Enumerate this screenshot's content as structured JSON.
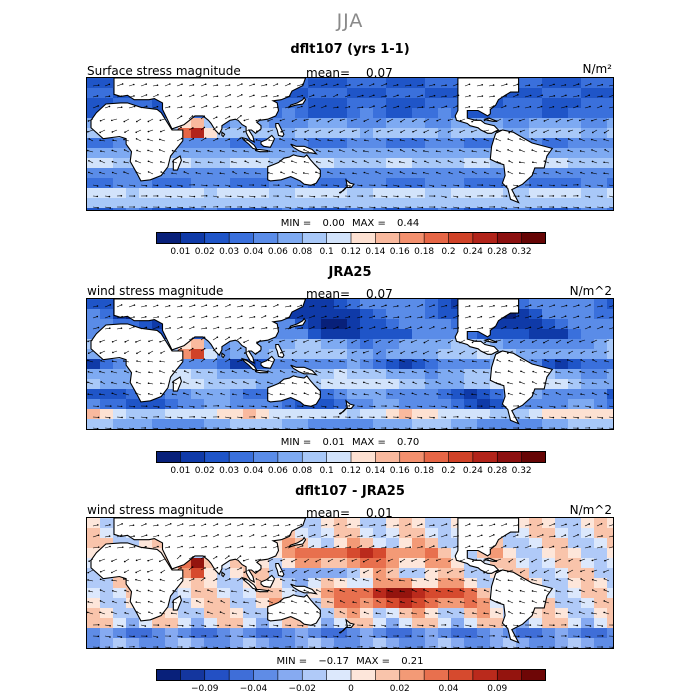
{
  "title": "JJA",
  "colors": {
    "ocean_low": "#1d4fc4",
    "ocean_mid": "#4a86e6",
    "ocean_light": "#a9cdfa",
    "warm": "#f07a4c",
    "hot": "#b82012",
    "land": "#ffffff"
  },
  "panels": [
    {
      "name": "dflt107",
      "title": "dflt107 (yrs 1-1)",
      "variable": "Surface stress magnitude",
      "mean_label": "mean=",
      "mean": "0.07",
      "units": "N/m²",
      "min_label": "MIN =",
      "min": "0.00",
      "max_label": "MAX =",
      "max": "0.44"
    },
    {
      "name": "JRA25",
      "title": "JRA25",
      "variable": "wind stress magnitude",
      "mean_label": "mean=",
      "mean": "0.07",
      "units": "N/m^2",
      "min_label": "MIN =",
      "min": "0.01",
      "max_label": "MAX =",
      "max": "0.70"
    },
    {
      "name": "diff",
      "title": "dflt107 - JRA25",
      "variable": "wind stress magnitude",
      "mean_label": "mean=",
      "mean": "0.01",
      "units": "N/m^2",
      "min_label": "MIN =",
      "min": "−0.17",
      "max_label": "MAX =",
      "max": "0.21"
    }
  ],
  "chart_data": [
    {
      "type": "heatmap",
      "title": "dflt107 (yrs 1-1)",
      "subtitle": "Surface stress magnitude",
      "season": "JJA",
      "units": "N/m^2",
      "mean": 0.07,
      "min": 0.0,
      "max": 0.44,
      "colorbar": {
        "levels": [
          0.01,
          0.02,
          0.03,
          0.04,
          0.06,
          0.08,
          0.1,
          0.12,
          0.14,
          0.16,
          0.18,
          0.2,
          0.24,
          0.28,
          0.32
        ],
        "tick_labels": [
          "0.01",
          "0.02",
          "0.03",
          "0.04",
          "0.06",
          "0.08",
          "0.1",
          "0.12",
          "0.14",
          "0.16",
          "0.18",
          "0.2",
          "0.24",
          "0.28",
          "0.32"
        ],
        "colors": [
          "#08207a",
          "#0f3aa8",
          "#1f55c8",
          "#3a70dc",
          "#5a8ce8",
          "#7eaaf2",
          "#a8c8f8",
          "#d2e3fb",
          "#fde1d2",
          "#f9b99e",
          "#f3906e",
          "#e66646",
          "#d04228",
          "#b2241a",
          "#8c1010",
          "#660505"
        ]
      }
    },
    {
      "type": "heatmap",
      "title": "JRA25",
      "subtitle": "wind stress magnitude",
      "season": "JJA",
      "units": "N/m^2",
      "mean": 0.07,
      "min": 0.01,
      "max": 0.7,
      "colorbar": {
        "levels": [
          0.01,
          0.02,
          0.03,
          0.04,
          0.06,
          0.08,
          0.1,
          0.12,
          0.14,
          0.16,
          0.18,
          0.2,
          0.24,
          0.28,
          0.32
        ],
        "tick_labels": [
          "0.01",
          "0.02",
          "0.03",
          "0.04",
          "0.06",
          "0.08",
          "0.1",
          "0.12",
          "0.14",
          "0.16",
          "0.18",
          "0.2",
          "0.24",
          "0.28",
          "0.32"
        ],
        "colors": [
          "#08207a",
          "#0f3aa8",
          "#1f55c8",
          "#3a70dc",
          "#5a8ce8",
          "#7eaaf2",
          "#a8c8f8",
          "#d2e3fb",
          "#fde1d2",
          "#f9b99e",
          "#f3906e",
          "#e66646",
          "#d04228",
          "#b2241a",
          "#8c1010",
          "#660505"
        ]
      }
    },
    {
      "type": "heatmap",
      "title": "dflt107 - JRA25",
      "subtitle": "wind stress magnitude",
      "season": "JJA",
      "units": "N/m^2",
      "mean": 0.01,
      "min": -0.17,
      "max": 0.21,
      "colorbar": {
        "levels": [
          -0.09,
          -0.04,
          -0.02,
          0,
          0.02,
          0.04,
          0.09
        ],
        "tick_labels": [
          "−0.09",
          "−0.04",
          "−0.02",
          "0",
          "0.02",
          "0.04",
          "0.09"
        ],
        "colors": [
          "#08207a",
          "#14369e",
          "#2350c4",
          "#3f6ed8",
          "#5f8ce6",
          "#86aaf1",
          "#b0caf8",
          "#dce8fc",
          "#fde6da",
          "#f9c4ab",
          "#f39a76",
          "#e8704e",
          "#d64a2e",
          "#ba2a1c",
          "#94140e",
          "#6e0606"
        ]
      }
    }
  ]
}
